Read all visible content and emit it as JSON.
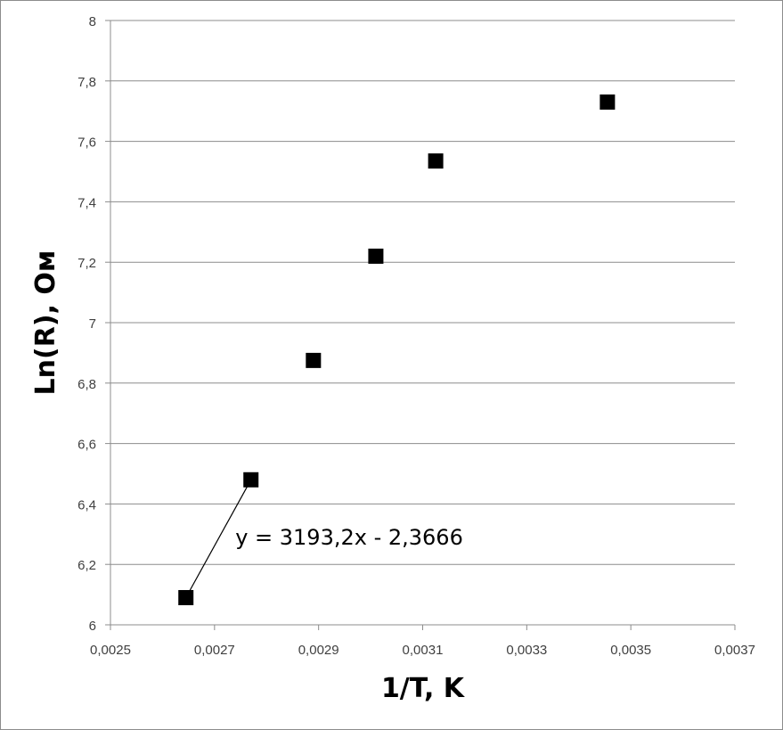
{
  "chart_data": {
    "type": "scatter",
    "xlabel": "1/T,  K",
    "ylabel": "Ln(R), Ом",
    "xlim": [
      0.0025,
      0.0037
    ],
    "ylim": [
      6,
      8
    ],
    "x_ticks": [
      0.0025,
      0.0027,
      0.0029,
      0.0031,
      0.0033,
      0.0035,
      0.0037
    ],
    "x_tick_labels": [
      "0,0025",
      "0,0027",
      "0,0029",
      "0,0031",
      "0,0033",
      "0,0035",
      "0,0037"
    ],
    "y_ticks": [
      6,
      6.2,
      6.4,
      6.6,
      6.8,
      7,
      7.2,
      7.4,
      7.6,
      7.8,
      8
    ],
    "y_tick_labels": [
      "6",
      "6,2",
      "6,4",
      "6,6",
      "6,8",
      "7",
      "7,2",
      "7,4",
      "7,6",
      "7,8",
      "8"
    ],
    "grid": "horizontal",
    "marker_color": "#000000",
    "points": [
      {
        "x": 0.002645,
        "y": 6.09
      },
      {
        "x": 0.00277,
        "y": 6.48
      },
      {
        "x": 0.00289,
        "y": 6.875
      },
      {
        "x": 0.00301,
        "y": 7.22
      },
      {
        "x": 0.003125,
        "y": 7.535
      },
      {
        "x": 0.003455,
        "y": 7.73
      }
    ],
    "trendline": {
      "from_index": 0,
      "to_index": 1
    },
    "annotation": {
      "text": "y = 3193,2x - 2,3666",
      "x": 0.00274,
      "y": 6.265
    }
  }
}
